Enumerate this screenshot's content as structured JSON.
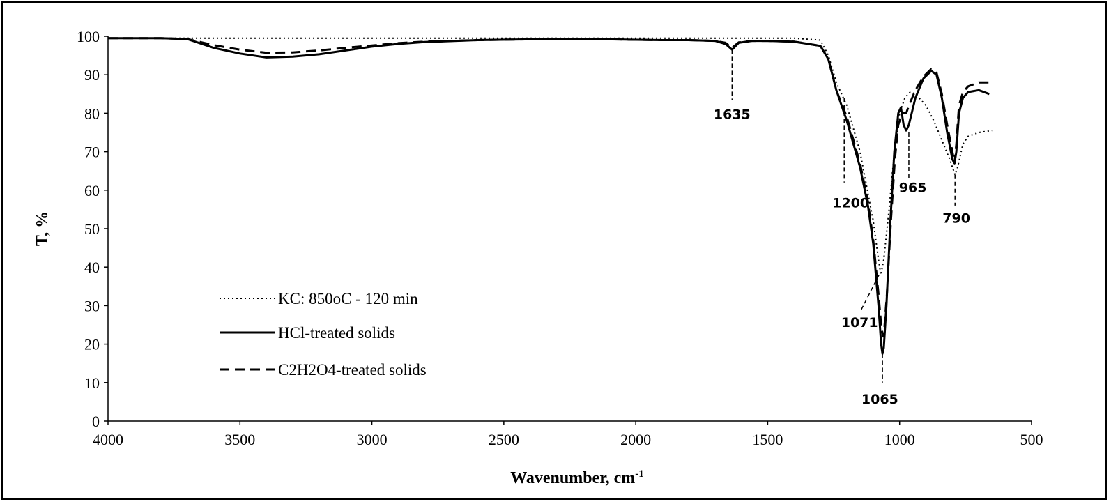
{
  "chart_data": {
    "type": "line",
    "xlabel": "Wavenumber, cm",
    "xlabel_sup": "-1",
    "ylabel": "T, %",
    "xlim": [
      4000,
      500
    ],
    "ylim": [
      0,
      100
    ],
    "x_ticks": [
      "4000",
      "3500",
      "3000",
      "2500",
      "2000",
      "1500",
      "1000",
      "500"
    ],
    "y_ticks": [
      "0",
      "10",
      "20",
      "30",
      "40",
      "50",
      "60",
      "70",
      "80",
      "90",
      "100"
    ],
    "legend_position": "lower-left",
    "series": [
      {
        "name": "KC: 850oC - 120 min",
        "style": "dotted",
        "points": [
          [
            4000,
            99.5
          ],
          [
            3700,
            99.5
          ],
          [
            3000,
            99.5
          ],
          [
            2500,
            99.5
          ],
          [
            2000,
            99.5
          ],
          [
            1700,
            99.5
          ],
          [
            1400,
            99.5
          ],
          [
            1300,
            99
          ],
          [
            1270,
            95
          ],
          [
            1240,
            88
          ],
          [
            1200,
            82
          ],
          [
            1150,
            70
          ],
          [
            1100,
            52
          ],
          [
            1080,
            42
          ],
          [
            1071,
            38
          ],
          [
            1060,
            42
          ],
          [
            1040,
            55
          ],
          [
            1020,
            70
          ],
          [
            1000,
            80
          ],
          [
            980,
            84
          ],
          [
            960,
            85.5
          ],
          [
            940,
            85
          ],
          [
            900,
            82
          ],
          [
            870,
            78
          ],
          [
            840,
            73
          ],
          [
            810,
            68
          ],
          [
            790,
            64
          ],
          [
            780,
            66
          ],
          [
            760,
            72
          ],
          [
            740,
            74
          ],
          [
            700,
            75
          ],
          [
            650,
            75.5
          ]
        ]
      },
      {
        "name": "HCl-treated solids",
        "style": "solid",
        "points": [
          [
            4000,
            99.5
          ],
          [
            3800,
            99.5
          ],
          [
            3700,
            99.3
          ],
          [
            3600,
            97
          ],
          [
            3500,
            95.5
          ],
          [
            3400,
            94.5
          ],
          [
            3300,
            94.7
          ],
          [
            3200,
            95.3
          ],
          [
            3100,
            96.3
          ],
          [
            3000,
            97.3
          ],
          [
            2900,
            98
          ],
          [
            2800,
            98.5
          ],
          [
            2600,
            99
          ],
          [
            2400,
            99.2
          ],
          [
            2200,
            99.3
          ],
          [
            2000,
            99.1
          ],
          [
            1900,
            99
          ],
          [
            1800,
            99
          ],
          [
            1700,
            98.8
          ],
          [
            1660,
            98
          ],
          [
            1635,
            96.5
          ],
          [
            1610,
            98.3
          ],
          [
            1560,
            98.8
          ],
          [
            1500,
            98.8
          ],
          [
            1400,
            98.6
          ],
          [
            1300,
            97.5
          ],
          [
            1270,
            94
          ],
          [
            1240,
            86
          ],
          [
            1200,
            78
          ],
          [
            1150,
            66
          ],
          [
            1120,
            56
          ],
          [
            1100,
            46
          ],
          [
            1080,
            30
          ],
          [
            1070,
            20
          ],
          [
            1065,
            17.5
          ],
          [
            1060,
            19
          ],
          [
            1050,
            30
          ],
          [
            1035,
            52
          ],
          [
            1020,
            70
          ],
          [
            1005,
            80
          ],
          [
            995,
            81.5
          ],
          [
            985,
            77
          ],
          [
            975,
            75.5
          ],
          [
            965,
            77
          ],
          [
            940,
            84
          ],
          [
            910,
            89
          ],
          [
            880,
            91
          ],
          [
            860,
            90
          ],
          [
            840,
            84
          ],
          [
            820,
            75
          ],
          [
            800,
            68
          ],
          [
            792,
            67
          ],
          [
            785,
            70
          ],
          [
            775,
            80
          ],
          [
            760,
            84
          ],
          [
            740,
            85.5
          ],
          [
            700,
            86
          ],
          [
            660,
            85
          ]
        ]
      },
      {
        "name": "C2H2O4-treated solids",
        "style": "dashed",
        "points": [
          [
            4000,
            99.5
          ],
          [
            3800,
            99.5
          ],
          [
            3700,
            99.3
          ],
          [
            3600,
            97.7
          ],
          [
            3500,
            96.5
          ],
          [
            3400,
            95.7
          ],
          [
            3300,
            95.8
          ],
          [
            3200,
            96.3
          ],
          [
            3100,
            97
          ],
          [
            3000,
            97.6
          ],
          [
            2900,
            98.2
          ],
          [
            2800,
            98.6
          ],
          [
            2600,
            99
          ],
          [
            2400,
            99.2
          ],
          [
            2200,
            99.3
          ],
          [
            2000,
            99.1
          ],
          [
            1900,
            99
          ],
          [
            1800,
            99
          ],
          [
            1700,
            98.8
          ],
          [
            1660,
            98.3
          ],
          [
            1635,
            97
          ],
          [
            1610,
            98.4
          ],
          [
            1560,
            98.8
          ],
          [
            1500,
            98.8
          ],
          [
            1400,
            98.6
          ],
          [
            1300,
            97.5
          ],
          [
            1270,
            94
          ],
          [
            1240,
            86
          ],
          [
            1200,
            79
          ],
          [
            1150,
            67
          ],
          [
            1120,
            57
          ],
          [
            1100,
            47
          ],
          [
            1080,
            33
          ],
          [
            1070,
            25
          ],
          [
            1063,
            22
          ],
          [
            1058,
            24
          ],
          [
            1048,
            33
          ],
          [
            1033,
            52
          ],
          [
            1018,
            68
          ],
          [
            1005,
            77
          ],
          [
            990,
            80
          ],
          [
            975,
            80
          ],
          [
            965,
            82
          ],
          [
            940,
            86
          ],
          [
            910,
            89.5
          ],
          [
            880,
            91.5
          ],
          [
            860,
            90.5
          ],
          [
            840,
            85
          ],
          [
            820,
            77
          ],
          [
            800,
            70
          ],
          [
            792,
            67
          ],
          [
            785,
            72
          ],
          [
            775,
            82
          ],
          [
            760,
            85.5
          ],
          [
            740,
            87
          ],
          [
            700,
            88
          ],
          [
            660,
            88
          ]
        ]
      }
    ],
    "annotations": [
      {
        "text": "1635"
      },
      {
        "text": "1200"
      },
      {
        "text": "965"
      },
      {
        "text": "790"
      },
      {
        "text": "1071"
      },
      {
        "text": "1065"
      }
    ]
  }
}
